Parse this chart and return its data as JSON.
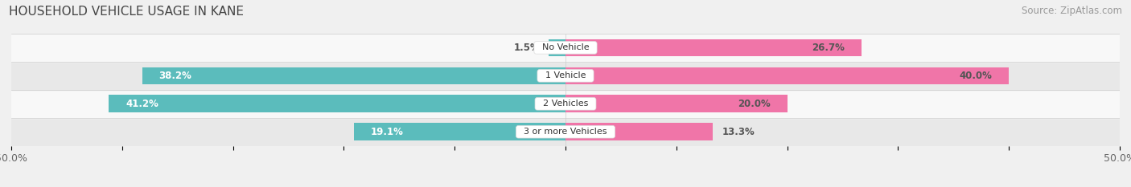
{
  "title": "HOUSEHOLD VEHICLE USAGE IN KANE",
  "source": "Source: ZipAtlas.com",
  "categories": [
    "3 or more Vehicles",
    "2 Vehicles",
    "1 Vehicle",
    "No Vehicle"
  ],
  "owner_values": [
    19.1,
    41.2,
    38.2,
    1.5
  ],
  "renter_values": [
    13.3,
    20.0,
    40.0,
    26.7
  ],
  "owner_color": "#5BBCBC",
  "renter_color": "#F075A8",
  "xlim": [
    -50,
    50
  ],
  "bar_height": 0.62,
  "background_color": "#f0f0f0",
  "row_bg_colors": [
    "#e8e8e8",
    "#f8f8f8",
    "#e8e8e8",
    "#f8f8f8"
  ],
  "label_color_inside": "#ffffff",
  "label_color_outside": "#555555",
  "title_fontsize": 11,
  "source_fontsize": 8.5,
  "tick_fontsize": 9,
  "bar_label_fontsize": 8.5
}
